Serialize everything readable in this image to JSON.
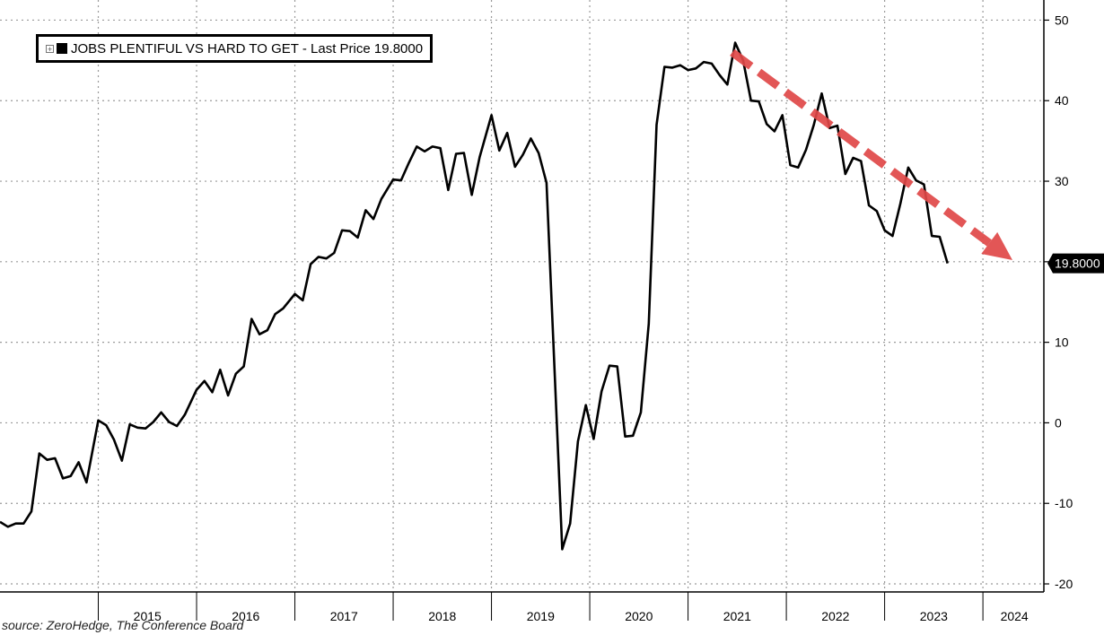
{
  "legend": {
    "label": "JOBS PLENTIFUL VS HARD TO GET - Last Price 19.8000",
    "last_price_tag": "19.8000",
    "line_color": "#000000"
  },
  "source": "source: ZeroHedge, The Conference Board",
  "annotation": {
    "type": "dashed-arrow",
    "color": "#e04848",
    "from": {
      "x": 2021.45,
      "y": 46
    },
    "to": {
      "x": 2024.3,
      "y": 20.2
    }
  },
  "chart_data": {
    "type": "line",
    "title": "",
    "xlabel": "",
    "ylabel": "",
    "ylim": [
      -21,
      52.5
    ],
    "xlim": [
      2014.0,
      2024.62
    ],
    "y_ticks": [
      50,
      40,
      30,
      20,
      10,
      0,
      -10,
      -20
    ],
    "y_tick_labels": [
      "50",
      "40",
      "30",
      "",
      "10",
      "0",
      "-10",
      "-20"
    ],
    "x_labels": [
      {
        "label": "2015",
        "x": 2015.5
      },
      {
        "label": "2016",
        "x": 2016.5
      },
      {
        "label": "2017",
        "x": 2017.5
      },
      {
        "label": "2018",
        "x": 2018.5
      },
      {
        "label": "2019",
        "x": 2019.5
      },
      {
        "label": "2020",
        "x": 2020.5
      },
      {
        "label": "2021",
        "x": 2021.5
      },
      {
        "label": "2022",
        "x": 2022.5
      },
      {
        "label": "2023",
        "x": 2023.5
      },
      {
        "label": "2024",
        "x": 2024.32
      }
    ],
    "year_boundaries": [
      2015,
      2016,
      2017,
      2018,
      2019,
      2020,
      2021,
      2022,
      2023,
      2024
    ],
    "grid": true,
    "axis_side": "right",
    "series": [
      {
        "color": "#000000",
        "points": [
          [
            2014.0,
            -12.3
          ],
          [
            2014.08,
            -12.9
          ],
          [
            2014.16,
            -12.5
          ],
          [
            2014.24,
            -12.5
          ],
          [
            2014.32,
            -11.0
          ],
          [
            2014.4,
            -3.8
          ],
          [
            2014.48,
            -4.6
          ],
          [
            2014.56,
            -4.4
          ],
          [
            2014.64,
            -6.9
          ],
          [
            2014.72,
            -6.6
          ],
          [
            2014.8,
            -4.9
          ],
          [
            2014.88,
            -7.4
          ],
          [
            2015.0,
            0.3
          ],
          [
            2015.08,
            -0.3
          ],
          [
            2015.16,
            -2.1
          ],
          [
            2015.24,
            -4.7
          ],
          [
            2015.32,
            -0.2
          ],
          [
            2015.4,
            -0.6
          ],
          [
            2015.48,
            -0.7
          ],
          [
            2015.56,
            0.1
          ],
          [
            2015.64,
            1.3
          ],
          [
            2015.72,
            0.1
          ],
          [
            2015.8,
            -0.4
          ],
          [
            2015.88,
            1.0
          ],
          [
            2016.0,
            4.1
          ],
          [
            2016.08,
            5.2
          ],
          [
            2016.16,
            3.8
          ],
          [
            2016.24,
            6.6
          ],
          [
            2016.32,
            3.4
          ],
          [
            2016.4,
            6.1
          ],
          [
            2016.48,
            7.0
          ],
          [
            2016.56,
            12.9
          ],
          [
            2016.64,
            11.0
          ],
          [
            2016.72,
            11.5
          ],
          [
            2016.8,
            13.5
          ],
          [
            2016.88,
            14.2
          ],
          [
            2017.0,
            16.0
          ],
          [
            2017.08,
            15.2
          ],
          [
            2017.16,
            19.7
          ],
          [
            2017.24,
            20.6
          ],
          [
            2017.32,
            20.4
          ],
          [
            2017.4,
            21.1
          ],
          [
            2017.48,
            23.9
          ],
          [
            2017.56,
            23.8
          ],
          [
            2017.64,
            23.0
          ],
          [
            2017.72,
            26.4
          ],
          [
            2017.8,
            25.3
          ],
          [
            2017.88,
            27.8
          ],
          [
            2018.0,
            30.2
          ],
          [
            2018.08,
            30.1
          ],
          [
            2018.16,
            32.3
          ],
          [
            2018.24,
            34.3
          ],
          [
            2018.32,
            33.7
          ],
          [
            2018.4,
            34.3
          ],
          [
            2018.48,
            34.1
          ],
          [
            2018.56,
            28.9
          ],
          [
            2018.64,
            33.4
          ],
          [
            2018.72,
            33.5
          ],
          [
            2018.8,
            28.3
          ],
          [
            2018.88,
            33.0
          ],
          [
            2019.0,
            38.2
          ],
          [
            2019.08,
            33.8
          ],
          [
            2019.16,
            36.0
          ],
          [
            2019.24,
            31.8
          ],
          [
            2019.32,
            33.3
          ],
          [
            2019.4,
            35.3
          ],
          [
            2019.48,
            33.5
          ],
          [
            2019.56,
            29.8
          ],
          [
            2019.72,
            -15.7
          ],
          [
            2019.8,
            -12.5
          ],
          [
            2019.88,
            -2.3
          ],
          [
            2019.96,
            2.2
          ],
          [
            2020.04,
            -2.0
          ],
          [
            2020.12,
            3.9
          ],
          [
            2020.2,
            7.1
          ],
          [
            2020.28,
            7.0
          ],
          [
            2020.36,
            -1.7
          ],
          [
            2020.44,
            -1.6
          ],
          [
            2020.52,
            1.3
          ],
          [
            2020.6,
            12.3
          ],
          [
            2020.68,
            37.0
          ],
          [
            2020.76,
            44.2
          ],
          [
            2020.84,
            44.1
          ],
          [
            2020.92,
            44.4
          ],
          [
            2021.0,
            43.8
          ],
          [
            2021.08,
            44.0
          ],
          [
            2021.16,
            44.8
          ],
          [
            2021.24,
            44.6
          ],
          [
            2021.32,
            43.2
          ],
          [
            2021.4,
            42.0
          ],
          [
            2021.48,
            47.2
          ],
          [
            2021.56,
            45.0
          ],
          [
            2021.64,
            40.0
          ],
          [
            2021.72,
            39.9
          ],
          [
            2021.8,
            37.1
          ],
          [
            2021.88,
            36.2
          ],
          [
            2021.96,
            38.2
          ],
          [
            2022.04,
            32.0
          ],
          [
            2022.12,
            31.7
          ],
          [
            2022.2,
            33.9
          ],
          [
            2022.28,
            37.0
          ],
          [
            2022.36,
            40.9
          ],
          [
            2022.44,
            36.6
          ],
          [
            2022.52,
            36.9
          ],
          [
            2022.6,
            30.9
          ],
          [
            2022.68,
            32.9
          ],
          [
            2022.76,
            32.5
          ],
          [
            2022.84,
            27.0
          ],
          [
            2022.92,
            26.3
          ],
          [
            2023.0,
            23.9
          ],
          [
            2023.08,
            23.2
          ],
          [
            2023.16,
            27.2
          ],
          [
            2023.24,
            31.7
          ],
          [
            2023.32,
            30.1
          ],
          [
            2023.4,
            29.6
          ],
          [
            2023.48,
            23.2
          ],
          [
            2023.56,
            23.1
          ],
          [
            2023.64,
            19.8
          ]
        ]
      }
    ]
  }
}
